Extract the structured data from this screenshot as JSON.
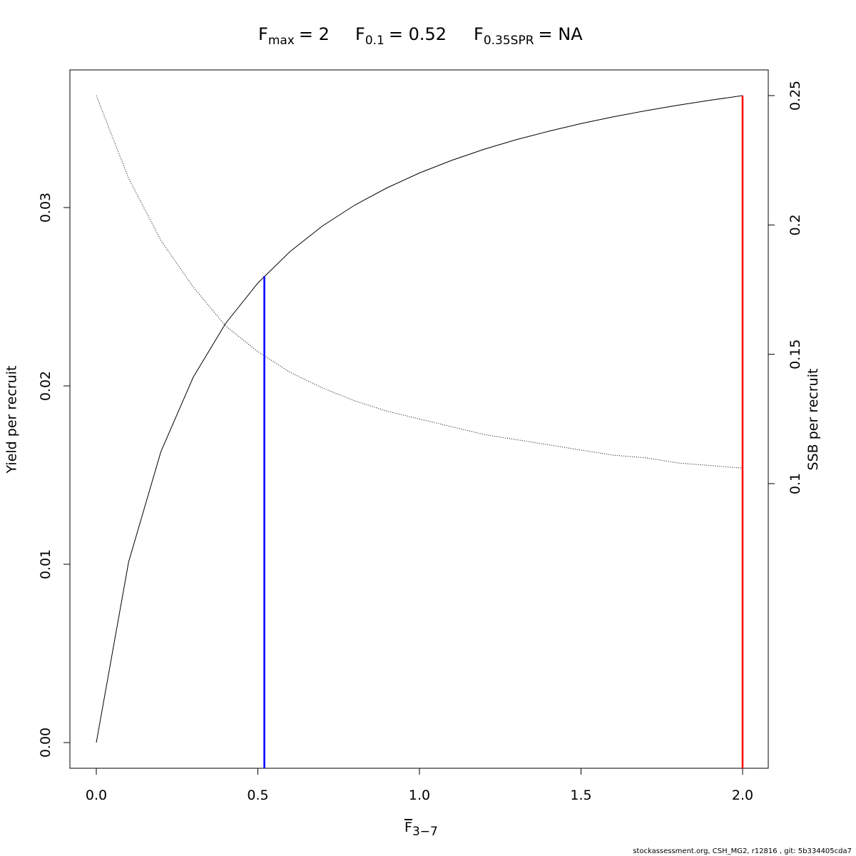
{
  "chart_data": {
    "type": "line",
    "title_parts": [
      {
        "symbol": "F",
        "sub": "max",
        "value": "= 2"
      },
      {
        "symbol": "F",
        "sub": "0.1",
        "value": "= 0.52"
      },
      {
        "symbol": "F",
        "sub": "0.35SPR",
        "value": "= NA"
      }
    ],
    "xlabel": {
      "symbol": "F",
      "sub": "3−7"
    },
    "ylabel": "Yield per recruit",
    "y2label": "SSB per recruit",
    "footer": "stockassessment.org, CSH_MG2, r12816 , git: 5b334405cda7",
    "x": [
      0,
      0.1,
      0.2,
      0.3,
      0.4,
      0.5,
      0.6,
      0.7,
      0.8,
      0.9,
      1.0,
      1.1,
      1.2,
      1.3,
      1.4,
      1.5,
      1.6,
      1.7,
      1.8,
      1.9,
      2.0
    ],
    "series": [
      {
        "name": "Yield per recruit",
        "color": "#000000",
        "linestyle": "solid",
        "values": [
          0,
          0.01013,
          0.01632,
          0.02049,
          0.0235,
          0.02577,
          0.02754,
          0.02897,
          0.03014,
          0.03111,
          0.03194,
          0.03265,
          0.03327,
          0.03381,
          0.03428,
          0.03471,
          0.03509,
          0.03543,
          0.03574,
          0.03602,
          0.03628
        ]
      },
      {
        "name": "SSB per recruit",
        "color": "#000000",
        "linestyle": "dotted",
        "axis": "y2",
        "values": [
          0.25,
          0.218,
          0.194,
          0.176,
          0.161,
          0.151,
          0.143,
          0.137,
          0.132,
          0.128,
          0.125,
          0.122,
          0.119,
          0.117,
          0.115,
          0.113,
          0.111,
          0.11,
          0.108,
          0.107,
          0.106
        ]
      }
    ],
    "reference_lines": [
      {
        "x": 0.52,
        "y": 0.02616,
        "color": "#0000ff"
      },
      {
        "x": 2,
        "y": 0.03628,
        "color": "#ff0000"
      }
    ],
    "xlim": [
      -0.0817,
      2.0795
    ],
    "xticks": [
      {
        "value": 0,
        "label": "0.0"
      },
      0.5,
      {
        "value": 1,
        "label": "1.0"
      },
      1.5,
      {
        "value": 2,
        "label": "2.0"
      }
    ],
    "ylim": [
      -0.00144,
      0.03772
    ],
    "yticks": [
      {
        "value": 0,
        "label": "0.00"
      },
      0.01,
      0.02,
      0.03
    ],
    "y2lim": [
      -0.01002,
      0.25993
    ],
    "y2ticks": [
      0.1,
      0.15,
      0.2,
      0.25
    ],
    "grid": false
  }
}
